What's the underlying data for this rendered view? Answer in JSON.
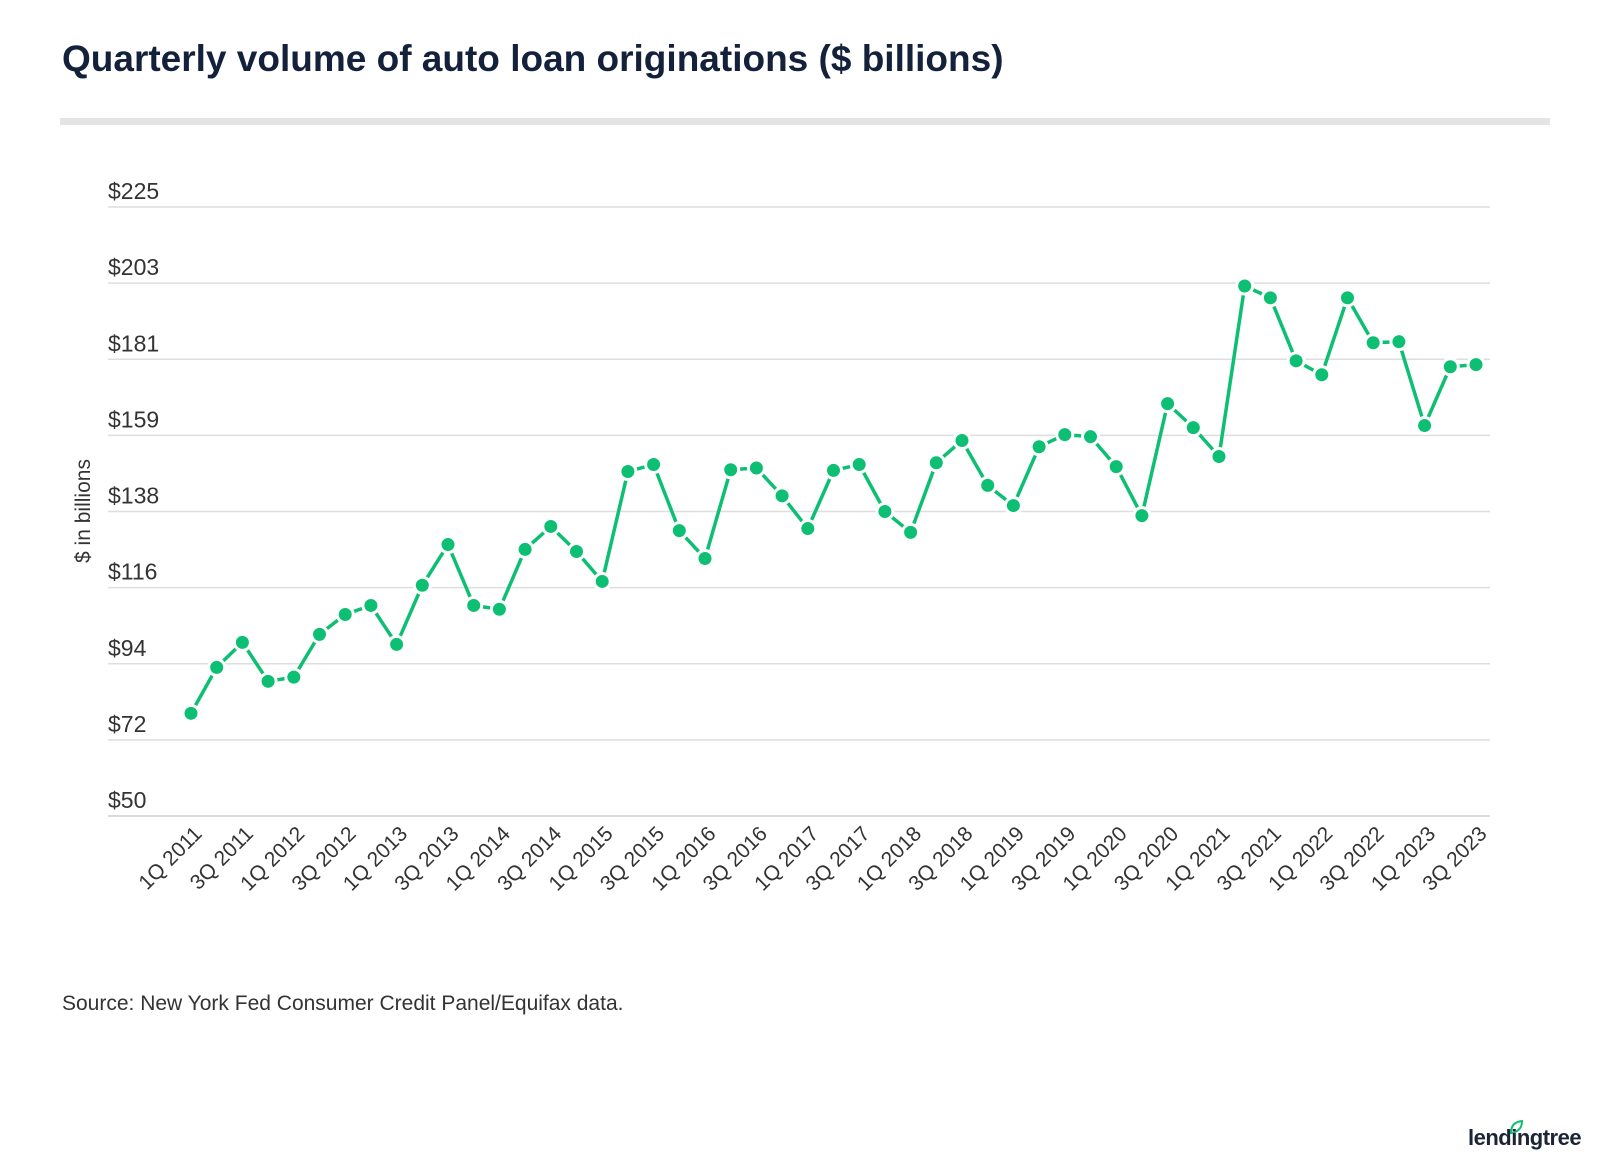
{
  "chart_data": {
    "type": "line",
    "title": "Quarterly volume of auto loan originations ($ billions)",
    "ylabel": "$ in billions",
    "xlabel": "",
    "ylim": [
      50,
      225
    ],
    "yticks": [
      "$50",
      "$72",
      "$94",
      "$116",
      "$138",
      "$159",
      "$181",
      "$203",
      "$225"
    ],
    "grid": true,
    "color": "#0dbf72",
    "x": [
      "1Q 2011",
      "2Q 2011",
      "3Q 2011",
      "4Q 2011",
      "1Q 2012",
      "2Q 2012",
      "3Q 2012",
      "4Q 2012",
      "1Q 2013",
      "2Q 2013",
      "3Q 2013",
      "4Q 2013",
      "1Q 2014",
      "2Q 2014",
      "3Q 2014",
      "4Q 2014",
      "1Q 2015",
      "2Q 2015",
      "3Q 2015",
      "4Q 2015",
      "1Q 2016",
      "2Q 2016",
      "3Q 2016",
      "4Q 2016",
      "1Q 2017",
      "2Q 2017",
      "3Q 2017",
      "4Q 2017",
      "1Q 2018",
      "2Q 2018",
      "3Q 2018",
      "4Q 2018",
      "1Q 2019",
      "2Q 2019",
      "3Q 2019",
      "4Q 2019",
      "1Q 2020",
      "2Q 2020",
      "3Q 2020",
      "4Q 2020",
      "1Q 2021",
      "2Q 2021",
      "3Q 2021",
      "4Q 2021",
      "1Q 2022",
      "2Q 2022",
      "3Q 2022",
      "4Q 2022",
      "1Q 2023",
      "2Q 2023",
      "3Q 2023"
    ],
    "xtick_labels": [
      "1Q 2011",
      "3Q 2011",
      "1Q 2012",
      "3Q 2012",
      "1Q 2013",
      "3Q 2013",
      "1Q 2014",
      "3Q 2014",
      "1Q 2015",
      "3Q 2015",
      "1Q 2016",
      "3Q 2016",
      "1Q 2017",
      "3Q 2017",
      "1Q 2018",
      "3Q 2018",
      "1Q 2019",
      "3Q 2019",
      "1Q 2020",
      "3Q 2020",
      "1Q 2021",
      "3Q 2021",
      "1Q 2022",
      "3Q 2022",
      "1Q 2023",
      "3Q 2023"
    ],
    "values": [
      79.5,
      92.7,
      99.9,
      88.7,
      89.9,
      102.2,
      107.9,
      110.5,
      99.3,
      116.3,
      128,
      110.5,
      109.4,
      126.6,
      133.2,
      126,
      117.4,
      149,
      151,
      132,
      124,
      149.5,
      150,
      142,
      132.6,
      149.3,
      151,
      137.5,
      131.5,
      151.5,
      157.9,
      145,
      139.2,
      156.1,
      159.6,
      159,
      150.4,
      136.3,
      168.5,
      161.6,
      153.3,
      202.3,
      198.9,
      180.8,
      176.8,
      198.9,
      186,
      186.3,
      162.2,
      179.1,
      179.7
    ]
  },
  "source": "Source: New York Fed Consumer Credit Panel/Equifax data.",
  "logo": "lendingtree"
}
